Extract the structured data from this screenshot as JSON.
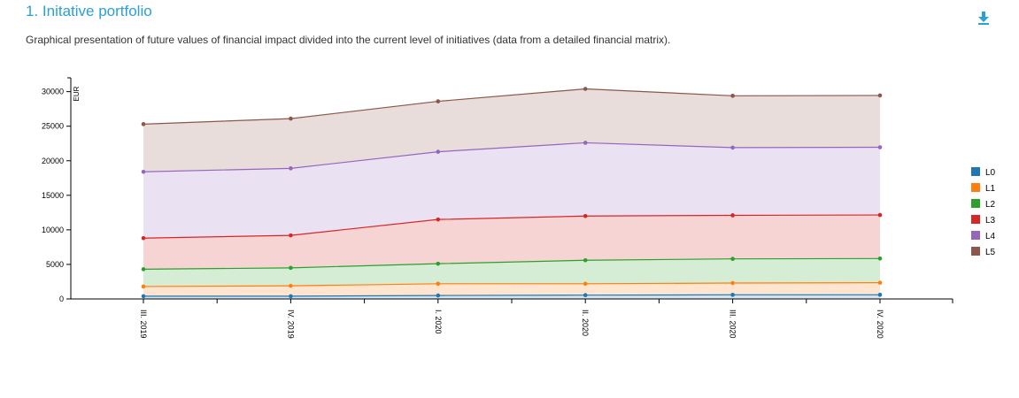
{
  "header": {
    "title": "1. Initative portfolio",
    "subtitle": "Graphical presentation of future values of financial impact divided into the current level of initiatives (data from a detailed financial matrix).",
    "download_icon": "download-icon",
    "accent": "#2a9fd8"
  },
  "chart_data": {
    "type": "area",
    "stacked": true,
    "ylabel": "EUR",
    "xlabel": "",
    "ylim": [
      0,
      32000
    ],
    "yticks": [
      0,
      5000,
      10000,
      15000,
      20000,
      25000,
      30000
    ],
    "categories": [
      "III. 2019",
      "IV. 2019",
      "I. 2020",
      "II. 2020",
      "III. 2020",
      "IV. 2020"
    ],
    "legend_position": "right",
    "series": [
      {
        "name": "L0",
        "color": "#1f77b4",
        "values": [
          400,
          400,
          500,
          550,
          600,
          600
        ]
      },
      {
        "name": "L1",
        "color": "#ff7f0e",
        "values": [
          1400,
          1500,
          1700,
          1650,
          1700,
          1750
        ]
      },
      {
        "name": "L2",
        "color": "#2ca02c",
        "values": [
          2500,
          2600,
          2900,
          3400,
          3500,
          3500
        ]
      },
      {
        "name": "L3",
        "color": "#d62728",
        "values": [
          4500,
          4700,
          6400,
          6400,
          6300,
          6300
        ]
      },
      {
        "name": "L4",
        "color": "#9467bd",
        "values": [
          9600,
          9700,
          9800,
          10600,
          9800,
          9800
        ]
      },
      {
        "name": "L5",
        "color": "#8c564b",
        "values": [
          6900,
          7200,
          7300,
          7800,
          7500,
          7500
        ]
      }
    ]
  }
}
